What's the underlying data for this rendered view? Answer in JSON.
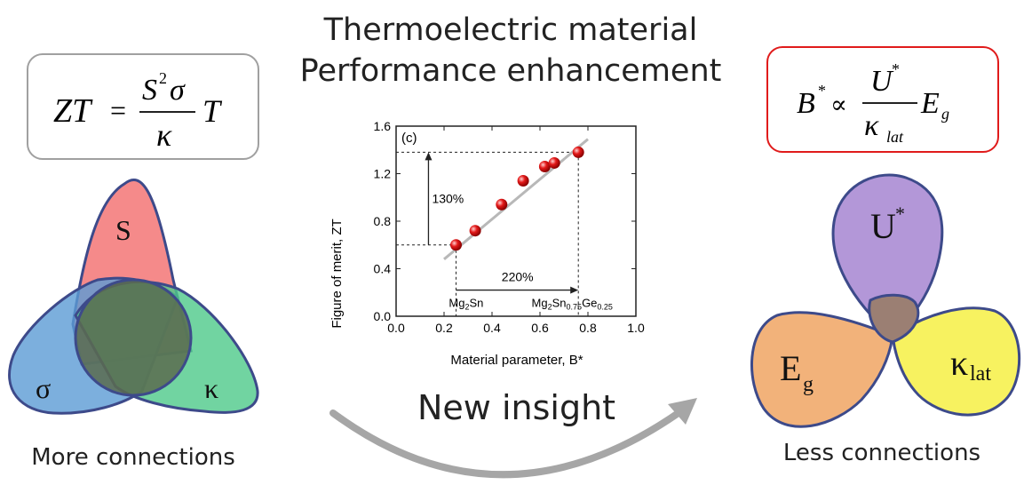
{
  "title_line1": "Thermoelectric material",
  "title_line2": "Performance enhancement",
  "left": {
    "formula": {
      "lhs": "ZT",
      "eq": "=",
      "num_S": "S",
      "num_sup": "2",
      "num_sigma": "σ",
      "den": "κ",
      "tail": "T"
    },
    "venn": {
      "top": "S",
      "left": "σ",
      "right": "κ"
    },
    "caption": "More connections",
    "colors": {
      "top": "#f26d6d",
      "left": "#5b9bd5",
      "right": "#4ec98a",
      "center": "#5a6b4f",
      "box_border": "#a0a0a0"
    }
  },
  "right": {
    "formula": {
      "lhs": "B",
      "lhs_sup": "*",
      "prop": "∝",
      "num": "U",
      "num_sup": "*",
      "den": "κ",
      "den_sub": "lat",
      "tail": "E",
      "tail_sub": "g"
    },
    "petals": {
      "top": "U",
      "top_sup": "*",
      "left": "E",
      "left_sub": "g",
      "right": "κ",
      "right_sub": "lat"
    },
    "caption": "Less connections",
    "colors": {
      "top": "#b397d8",
      "left": "#f2b27a",
      "right": "#f7f260",
      "center": "#9b7f73",
      "border": "#3d4a8a",
      "box_border": "#e01b1b"
    }
  },
  "insight_label": "New insight",
  "chart_data": {
    "type": "scatter",
    "panel_label": "(c)",
    "xlabel": "Material parameter, B*",
    "ylabel": "Figure of merit, ZT",
    "xlim": [
      0.0,
      1.0
    ],
    "ylim": [
      0.0,
      1.6
    ],
    "xticks": [
      "0.0",
      "0.2",
      "0.4",
      "0.6",
      "0.8",
      "1.0"
    ],
    "yticks": [
      "0.0",
      "0.4",
      "0.8",
      "1.2",
      "1.6"
    ],
    "points": [
      {
        "x": 0.25,
        "y": 0.6
      },
      {
        "x": 0.33,
        "y": 0.72
      },
      {
        "x": 0.44,
        "y": 0.94
      },
      {
        "x": 0.53,
        "y": 1.14
      },
      {
        "x": 0.62,
        "y": 1.26
      },
      {
        "x": 0.66,
        "y": 1.29
      },
      {
        "x": 0.76,
        "y": 1.38
      }
    ],
    "fit_line": {
      "x1": 0.2,
      "y1": 0.48,
      "x2": 0.8,
      "y2": 1.49
    },
    "annotations": {
      "vertical_pct": "130%",
      "horizontal_pct": "220%",
      "start_label_main": "Mg",
      "start_label_sub": "2",
      "start_label_end": "Sn",
      "end_label_a": "Mg",
      "end_label_a_sub": "2",
      "end_label_b": "Sn",
      "end_label_b_sub": "0.75",
      "end_label_c": "Ge",
      "end_label_c_sub": "0.25"
    },
    "point_color": "#e41a1a",
    "line_color": "#b8b8b8"
  }
}
